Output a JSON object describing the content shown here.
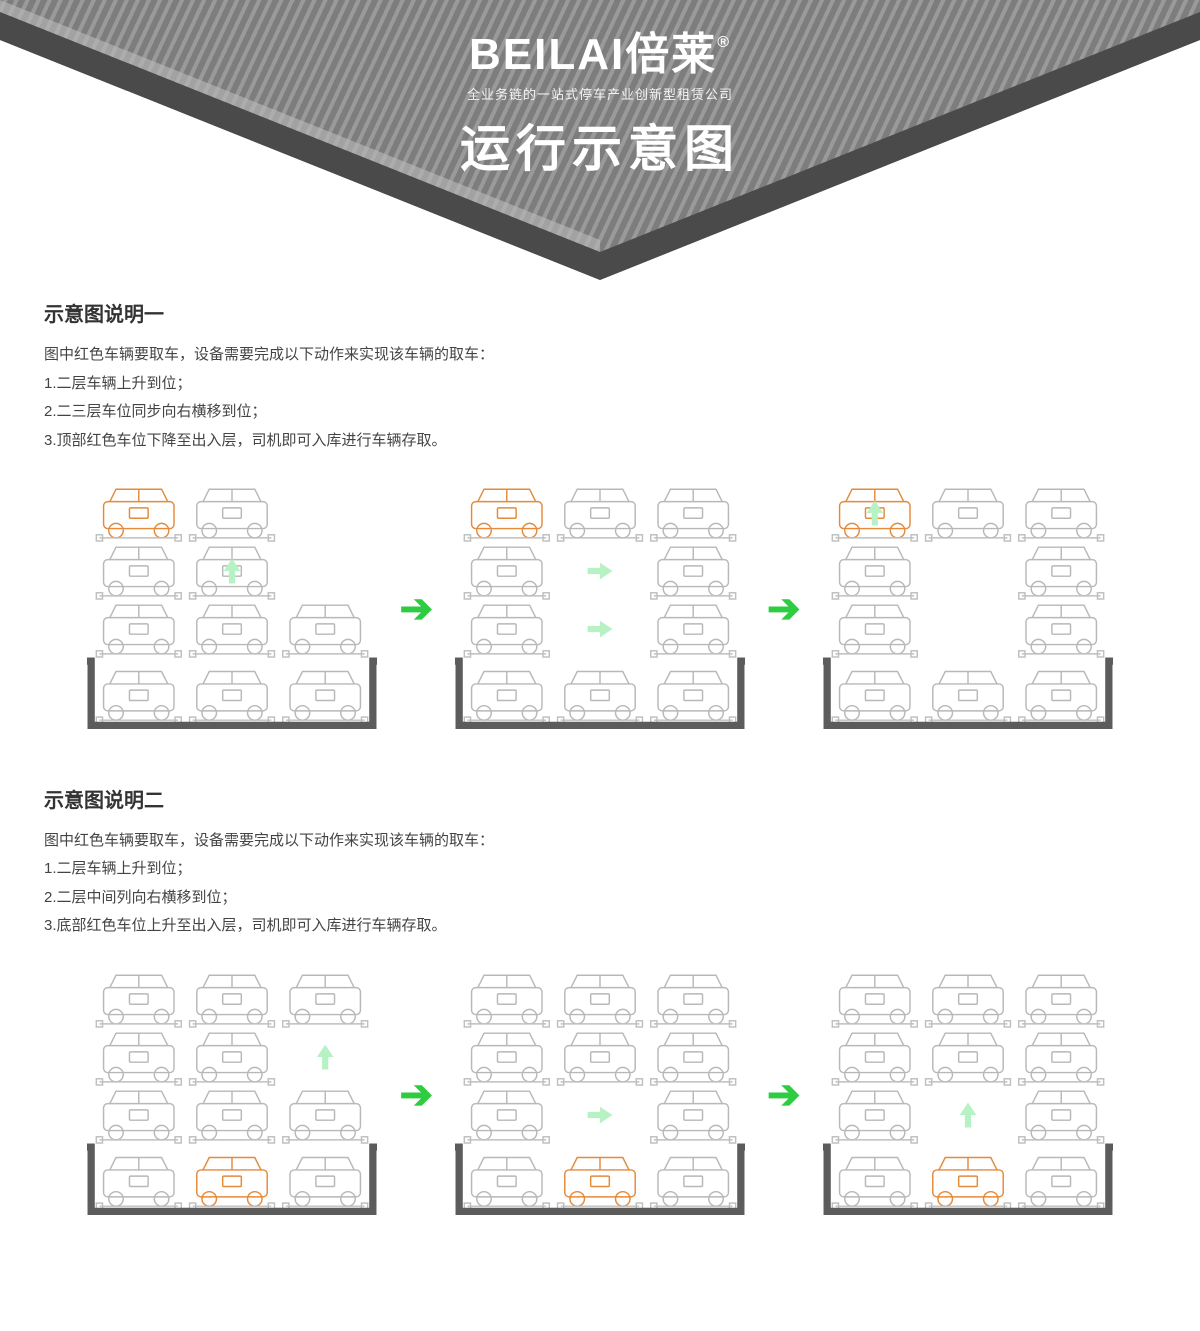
{
  "header": {
    "brand": "BEILAI倍莱",
    "brand_mark": "®",
    "tagline": "全业务链的一站式停车产业创新型租赁公司",
    "title": "运行示意图",
    "colors": {
      "stripe_dark": "#7d7d7d",
      "stripe_light": "#9a9a9a",
      "edge": "#4a4a4a"
    }
  },
  "section1": {
    "heading": "示意图说明一",
    "lines": [
      "图中红色车辆要取车，设备需要完成以下动作来实现该车辆的取车：",
      "1.二层车辆上升到位；",
      "2.二三层车位同步向右横移到位；",
      "3.顶部红色车位下降至出入层，司机即可入库进行车辆存取。"
    ]
  },
  "section2": {
    "heading": "示意图说明二",
    "lines": [
      "图中红色车辆要取车，设备需要完成以下动作来实现该车辆的取车：",
      "1.二层车辆上升到位；",
      "2.二层中间列向右横移到位；",
      "3.底部红色车位上升至出入层，司机即可入库进行车辆存取。"
    ]
  },
  "diagram_style": {
    "car_width": 76,
    "car_height": 50,
    "col_gap": 14,
    "level_gap": 6,
    "colors": {
      "car_outline": "#b8b8b8",
      "car_highlight": "#e48a3a",
      "platform": "#bfbfbf",
      "ground": "#5c5c5c",
      "hint_arrow": "#b6f2c4",
      "step_arrow": "#2ecc40"
    },
    "pit": {
      "stroke": "#5c5c5c",
      "stroke_width": 7
    }
  },
  "diagram1": {
    "stages": [
      {
        "hints": [
          {
            "type": "up",
            "col": 1,
            "level": 2
          }
        ],
        "levels": [
          {
            "in_pit": true,
            "cars": [
              {
                "col": 0
              },
              {
                "col": 1
              },
              {
                "col": 2
              }
            ]
          },
          {
            "cars": [
              {
                "col": 0
              },
              {
                "col": 1
              },
              {
                "col": 2
              }
            ]
          },
          {
            "cars": [
              {
                "col": 0
              },
              {
                "col": 1
              }
            ]
          },
          {
            "cars": [
              {
                "col": 0,
                "hl": true
              },
              {
                "col": 1
              }
            ]
          }
        ]
      },
      {
        "hints": [
          {
            "type": "right",
            "col": 1,
            "level": 1
          },
          {
            "type": "right",
            "col": 1,
            "level": 2
          }
        ],
        "levels": [
          {
            "in_pit": true,
            "cars": [
              {
                "col": 0
              },
              {
                "col": 1
              },
              {
                "col": 2
              }
            ]
          },
          {
            "cars": [
              {
                "col": 0
              },
              {
                "col": 2
              }
            ]
          },
          {
            "cars": [
              {
                "col": 0
              },
              {
                "col": 2
              }
            ]
          },
          {
            "cars": [
              {
                "col": 0,
                "hl": true
              },
              {
                "col": 1
              },
              {
                "col": 2
              }
            ]
          }
        ]
      },
      {
        "hints": [
          {
            "type": "down",
            "col": 0,
            "level": 3
          }
        ],
        "levels": [
          {
            "in_pit": true,
            "cars": [
              {
                "col": 0
              },
              {
                "col": 1
              },
              {
                "col": 2
              }
            ]
          },
          {
            "cars": [
              {
                "col": 0
              },
              {
                "col": 2
              }
            ]
          },
          {
            "cars": [
              {
                "col": 0
              },
              {
                "col": 2
              }
            ]
          },
          {
            "cars": [
              {
                "col": 0,
                "hl": true
              },
              {
                "col": 1
              },
              {
                "col": 2
              }
            ]
          }
        ]
      }
    ]
  },
  "diagram2": {
    "stages": [
      {
        "hints": [
          {
            "type": "up",
            "col": 2,
            "level": 2
          }
        ],
        "levels": [
          {
            "in_pit": true,
            "cars": [
              {
                "col": 0
              },
              {
                "col": 1,
                "hl": true
              },
              {
                "col": 2
              }
            ]
          },
          {
            "cars": [
              {
                "col": 0
              },
              {
                "col": 1
              },
              {
                "col": 2
              }
            ]
          },
          {
            "cars": [
              {
                "col": 0
              },
              {
                "col": 1
              }
            ]
          },
          {
            "cars": [
              {
                "col": 0
              },
              {
                "col": 1
              },
              {
                "col": 2
              }
            ]
          }
        ]
      },
      {
        "hints": [
          {
            "type": "right",
            "col": 1,
            "level": 1
          }
        ],
        "levels": [
          {
            "in_pit": true,
            "cars": [
              {
                "col": 0
              },
              {
                "col": 1,
                "hl": true
              },
              {
                "col": 2
              }
            ]
          },
          {
            "cars": [
              {
                "col": 0
              },
              {
                "col": 2
              }
            ]
          },
          {
            "cars": [
              {
                "col": 0
              },
              {
                "col": 1
              },
              {
                "col": 2
              }
            ]
          },
          {
            "cars": [
              {
                "col": 0
              },
              {
                "col": 1
              },
              {
                "col": 2
              }
            ]
          }
        ]
      },
      {
        "hints": [
          {
            "type": "up",
            "col": 1,
            "level": 1
          }
        ],
        "levels": [
          {
            "in_pit": true,
            "cars": [
              {
                "col": 0
              },
              {
                "col": 1,
                "hl": true
              },
              {
                "col": 2
              }
            ]
          },
          {
            "cars": [
              {
                "col": 0
              },
              {
                "col": 2
              }
            ]
          },
          {
            "cars": [
              {
                "col": 0
              },
              {
                "col": 1
              },
              {
                "col": 2
              }
            ]
          },
          {
            "cars": [
              {
                "col": 0
              },
              {
                "col": 1
              },
              {
                "col": 2
              }
            ]
          }
        ]
      }
    ]
  }
}
